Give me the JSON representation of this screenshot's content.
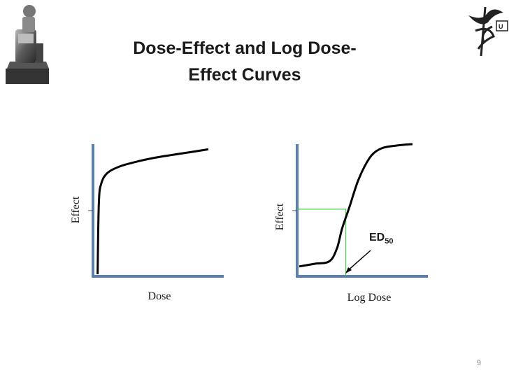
{
  "slide": {
    "title_line1": "Dose-Effect and Log Dose-",
    "title_line2": "Effect Curves",
    "page_number": "9"
  },
  "chart_data": [
    {
      "type": "line",
      "xlabel": "Dose",
      "ylabel": "Effect",
      "axis_color": "#5b7fae",
      "curve_color": "#000000",
      "series": [
        {
          "x": [
            0.02,
            0.03,
            0.05,
            0.1,
            0.2,
            0.35,
            0.5,
            0.7,
            0.9
          ],
          "y": [
            0.0,
            0.55,
            0.7,
            0.78,
            0.83,
            0.87,
            0.9,
            0.93,
            0.96
          ]
        }
      ]
    },
    {
      "type": "line",
      "xlabel": "Log Dose",
      "ylabel": "Effect",
      "axis_color": "#5b7fae",
      "curve_color": "#000000",
      "guide_color": "#33cc33",
      "series": [
        {
          "x": [
            0.0,
            0.12,
            0.24,
            0.3,
            0.34,
            0.4,
            0.46,
            0.52,
            0.58,
            0.66,
            0.78,
            0.9
          ],
          "y": [
            0.06,
            0.08,
            0.1,
            0.2,
            0.35,
            0.52,
            0.7,
            0.83,
            0.92,
            0.97,
            0.99,
            1.0
          ]
        }
      ],
      "ed50": {
        "label": "ED",
        "subscript": "50",
        "x": 0.37,
        "y": 0.5
      }
    }
  ]
}
